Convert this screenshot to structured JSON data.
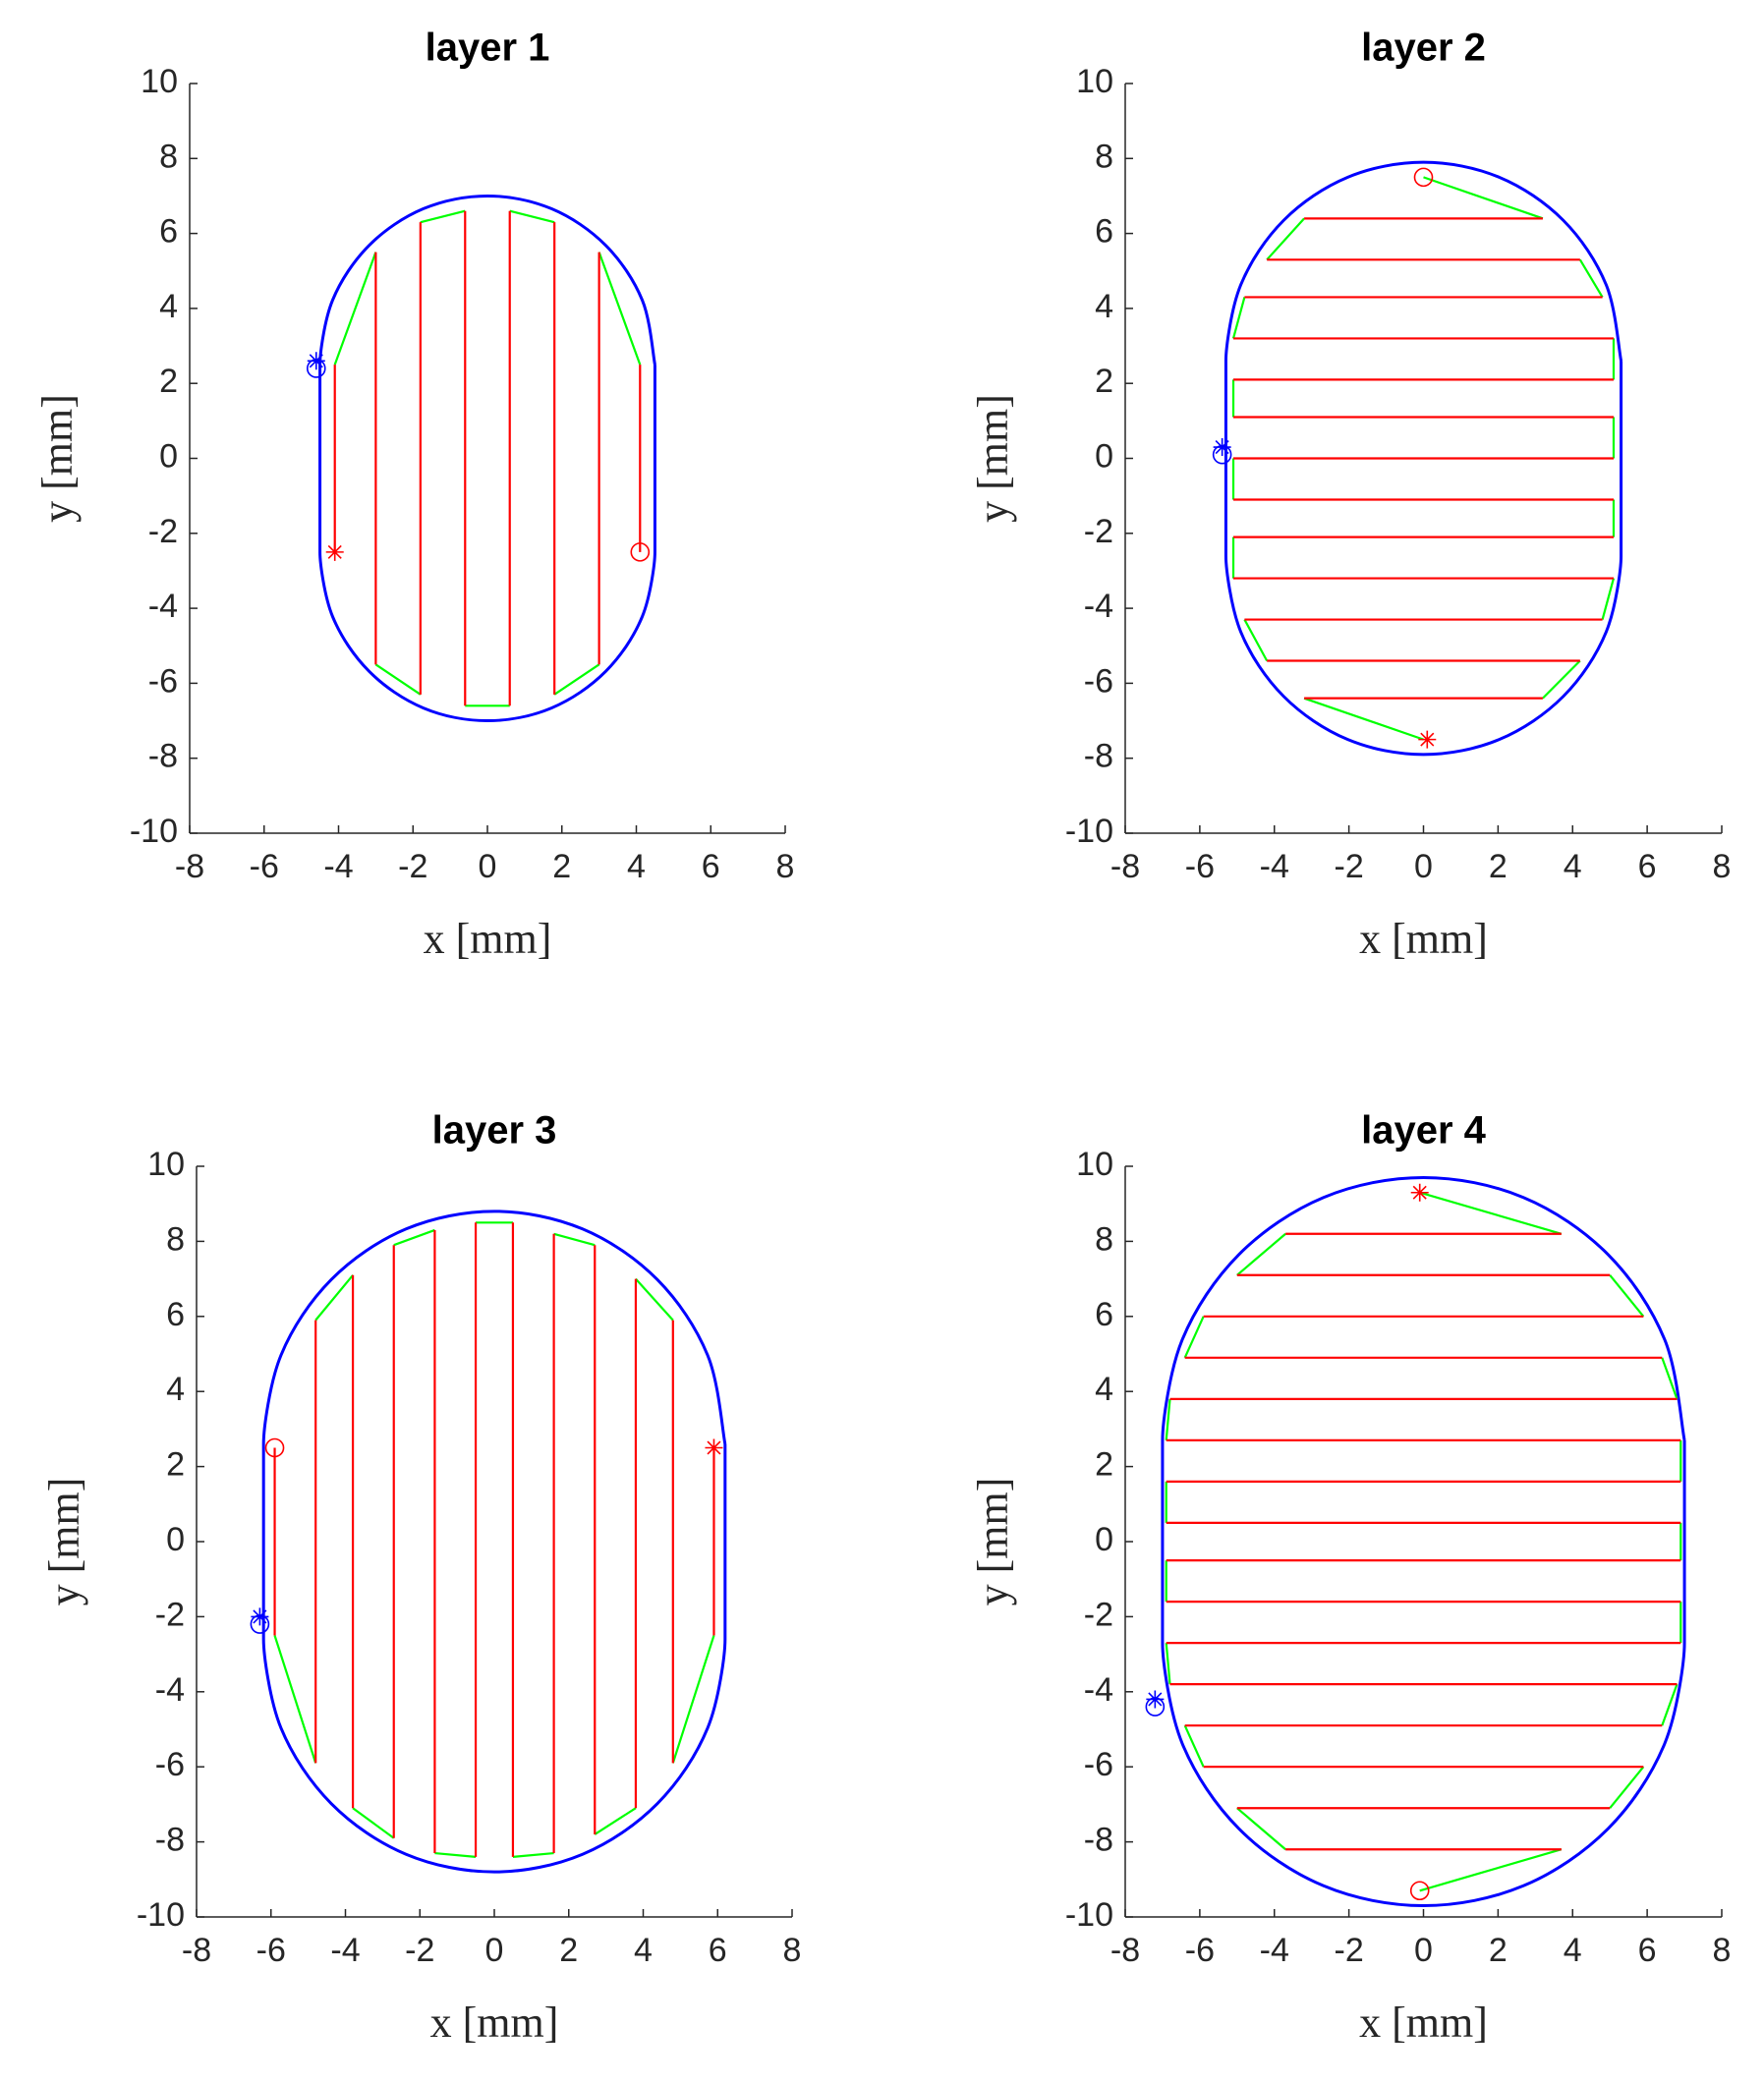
{
  "chart_data": [
    {
      "type": "line",
      "title": "layer 1",
      "xlabel": "x [mm]",
      "ylabel": "y [mm]",
      "xlim": [
        -8,
        8
      ],
      "ylim": [
        -10,
        10
      ],
      "xticks": [
        -8,
        -6,
        -4,
        -2,
        0,
        2,
        4,
        6,
        8
      ],
      "yticks": [
        -10,
        -8,
        -6,
        -4,
        -2,
        0,
        2,
        4,
        6,
        8,
        10
      ],
      "series": [
        {
          "color": "#0000ff",
          "smooth": true,
          "x": [
            4.5,
            4.16,
            3.18,
            1.72,
            0,
            -1.72,
            -3.18,
            -4.16,
            -4.5,
            -4.5,
            -4.16,
            -3.18,
            -1.72,
            0,
            1.72,
            3.18,
            4.16,
            4.5,
            4.5
          ],
          "y": [
            2.5,
            4.22,
            5.68,
            6.66,
            7.0,
            6.66,
            5.68,
            4.22,
            2.5,
            -2.5,
            -4.22,
            -5.68,
            -6.66,
            -7.0,
            -6.66,
            -5.68,
            -4.22,
            -2.5,
            2.5
          ]
        },
        {
          "color": "#00ff00",
          "x": [
            -4.1,
            -3.0,
            null,
            -3.0,
            -1.8,
            null,
            -1.8,
            -0.6,
            null,
            -0.6,
            0.6,
            null,
            0.6,
            1.8,
            null,
            1.8,
            3.0,
            null,
            3.0,
            4.1
          ],
          "y": [
            2.5,
            5.5,
            null,
            -5.5,
            -6.3,
            null,
            6.3,
            6.6,
            null,
            -6.6,
            -6.6,
            null,
            6.6,
            6.3,
            null,
            -6.3,
            -5.5,
            null,
            5.5,
            2.5
          ]
        },
        {
          "color": "#ff0000",
          "x": [
            -4.1,
            -4.1,
            null,
            -3.0,
            -3.0,
            null,
            -1.8,
            -1.8,
            null,
            -0.6,
            -0.6,
            null,
            0.6,
            0.6,
            null,
            1.8,
            1.8,
            null,
            3.0,
            3.0,
            null,
            4.1,
            4.1
          ],
          "y": [
            2.5,
            -2.5,
            null,
            5.5,
            -5.5,
            null,
            6.3,
            -6.3,
            null,
            6.6,
            -6.6,
            null,
            6.6,
            -6.6,
            null,
            6.3,
            -6.3,
            null,
            5.5,
            -5.5,
            null,
            2.5,
            -2.5
          ]
        },
        {
          "color": "#0000ff",
          "marker": "*",
          "x": [
            -4.6
          ],
          "y": [
            2.6
          ]
        },
        {
          "color": "#0000ff",
          "marker": "o",
          "x": [
            -4.6
          ],
          "y": [
            2.4
          ]
        },
        {
          "color": "#ff0000",
          "marker": "*",
          "x": [
            -4.1
          ],
          "y": [
            -2.5
          ]
        },
        {
          "color": "#ff0000",
          "marker": "o",
          "x": [
            4.1
          ],
          "y": [
            -2.5
          ]
        }
      ]
    },
    {
      "type": "line",
      "title": "layer 2",
      "xlabel": "x [mm]",
      "ylabel": "y [mm]",
      "xlim": [
        -8,
        8
      ],
      "ylim": [
        -10,
        10
      ],
      "xticks": [
        -8,
        -6,
        -4,
        -2,
        0,
        2,
        4,
        6,
        8
      ],
      "yticks": [
        -10,
        -8,
        -6,
        -4,
        -2,
        0,
        2,
        4,
        6,
        8,
        10
      ],
      "series": [
        {
          "color": "#0000ff",
          "smooth": true,
          "x": [
            5.3,
            4.9,
            3.75,
            2.03,
            0,
            -2.03,
            -3.75,
            -4.9,
            -5.3,
            -5.3,
            -4.9,
            -3.75,
            -2.03,
            0,
            2.03,
            3.75,
            4.9,
            5.3,
            5.3
          ],
          "y": [
            2.6,
            4.63,
            6.35,
            7.5,
            7.9,
            7.5,
            6.35,
            4.63,
            2.6,
            -2.6,
            -4.63,
            -6.35,
            -7.5,
            -7.9,
            -7.5,
            -6.35,
            -4.63,
            -2.6,
            2.6
          ]
        },
        {
          "color": "#00ff00",
          "x": [
            0,
            3.2,
            null,
            -3.2,
            -4.2,
            null,
            4.2,
            4.8,
            null,
            -4.8,
            -5.1,
            null,
            5.1,
            5.1,
            null,
            -5.1,
            -5.1,
            null,
            5.1,
            5.1,
            null,
            -5.1,
            -5.1,
            null,
            5.1,
            5.1,
            null,
            -5.1,
            -5.1,
            null,
            5.1,
            4.8,
            null,
            -4.8,
            -4.2,
            null,
            4.2,
            3.2,
            null,
            -3.2,
            0
          ],
          "y": [
            7.5,
            6.4,
            null,
            6.4,
            5.3,
            null,
            5.3,
            4.3,
            null,
            4.3,
            3.2,
            null,
            3.2,
            2.1,
            null,
            2.1,
            1.1,
            null,
            1.1,
            0,
            null,
            0,
            -1.1,
            null,
            -1.1,
            -2.1,
            null,
            -2.1,
            -3.2,
            null,
            -3.2,
            -4.3,
            null,
            -4.3,
            -5.4,
            null,
            -5.4,
            -6.4,
            null,
            -6.4,
            -7.5
          ]
        },
        {
          "color": "#ff0000",
          "x": [
            -3.2,
            3.2,
            null,
            -4.2,
            4.2,
            null,
            -4.8,
            4.8,
            null,
            -5.1,
            5.1,
            null,
            -5.1,
            5.1,
            null,
            -5.1,
            5.1,
            null,
            -5.1,
            5.1,
            null,
            -5.1,
            5.1,
            null,
            -5.1,
            5.1,
            null,
            -5.1,
            5.1,
            null,
            -4.8,
            4.8,
            null,
            -4.2,
            4.2,
            null,
            -3.2,
            3.2
          ],
          "y": [
            6.4,
            6.4,
            null,
            5.3,
            5.3,
            null,
            4.3,
            4.3,
            null,
            3.2,
            3.2,
            null,
            2.1,
            2.1,
            null,
            1.1,
            1.1,
            null,
            0,
            0,
            null,
            -1.1,
            -1.1,
            null,
            -2.1,
            -2.1,
            null,
            -3.2,
            -3.2,
            null,
            -4.3,
            -4.3,
            null,
            -5.4,
            -5.4,
            null,
            -6.4,
            -6.4
          ]
        },
        {
          "color": "#0000ff",
          "marker": "*",
          "x": [
            -5.4
          ],
          "y": [
            0.3
          ]
        },
        {
          "color": "#0000ff",
          "marker": "o",
          "x": [
            -5.4
          ],
          "y": [
            0.1
          ]
        },
        {
          "color": "#ff0000",
          "marker": "o",
          "x": [
            0
          ],
          "y": [
            7.5
          ]
        },
        {
          "color": "#ff0000",
          "marker": "*",
          "x": [
            0.1
          ],
          "y": [
            -7.5
          ]
        }
      ]
    },
    {
      "type": "line",
      "title": "layer 3",
      "xlabel": "x [mm]",
      "ylabel": "y [mm]",
      "xlim": [
        -8,
        8
      ],
      "ylim": [
        -10,
        10
      ],
      "xticks": [
        -8,
        -6,
        -4,
        -2,
        0,
        2,
        4,
        6,
        8
      ],
      "yticks": [
        -10,
        -8,
        -6,
        -4,
        -2,
        0,
        2,
        4,
        6,
        8,
        10
      ],
      "series": [
        {
          "color": "#0000ff",
          "smooth": true,
          "x": [
            6.2,
            5.73,
            4.38,
            2.37,
            0,
            -2.37,
            -4.38,
            -5.73,
            -6.2,
            -6.2,
            -5.73,
            -4.38,
            -2.37,
            0,
            2.37,
            4.38,
            5.73,
            6.2,
            6.2
          ],
          "y": [
            2.6,
            4.97,
            6.98,
            8.33,
            8.8,
            8.33,
            6.98,
            4.97,
            2.6,
            -2.6,
            -4.97,
            -6.98,
            -8.33,
            -8.8,
            -8.33,
            -6.98,
            -4.97,
            -2.6,
            2.6
          ]
        },
        {
          "color": "#00ff00",
          "x": [
            -5.9,
            -4.8,
            null,
            -4.8,
            -3.8,
            null,
            -3.8,
            -2.7,
            null,
            -2.7,
            -1.6,
            null,
            -1.6,
            -0.5,
            null,
            -0.5,
            0.5,
            null,
            0.5,
            1.6,
            null,
            1.6,
            2.7,
            null,
            2.7,
            3.8,
            null,
            3.8,
            4.8,
            null,
            4.8,
            5.9
          ],
          "y": [
            -2.5,
            -5.9,
            null,
            5.9,
            7.1,
            null,
            -7.1,
            -7.9,
            null,
            7.9,
            8.3,
            null,
            -8.3,
            -8.4,
            null,
            8.5,
            8.5,
            null,
            -8.4,
            -8.3,
            null,
            8.2,
            7.9,
            null,
            -7.8,
            -7.1,
            null,
            7.0,
            5.9,
            null,
            -5.9,
            -2.5
          ]
        },
        {
          "color": "#ff0000",
          "x": [
            -5.9,
            -5.9,
            null,
            -4.8,
            -4.8,
            null,
            -3.8,
            -3.8,
            null,
            -2.7,
            -2.7,
            null,
            -1.6,
            -1.6,
            null,
            -0.5,
            -0.5,
            null,
            0.5,
            0.5,
            null,
            1.6,
            1.6,
            null,
            2.7,
            2.7,
            null,
            3.8,
            3.8,
            null,
            4.8,
            4.8,
            null,
            5.9,
            5.9
          ],
          "y": [
            2.5,
            -2.5,
            null,
            5.9,
            -5.9,
            null,
            7.1,
            -7.1,
            null,
            7.9,
            -7.9,
            null,
            8.3,
            -8.3,
            null,
            8.5,
            -8.4,
            null,
            8.5,
            -8.4,
            null,
            8.2,
            -8.3,
            null,
            7.9,
            -7.8,
            null,
            7.0,
            -7.1,
            null,
            5.9,
            -5.9,
            null,
            2.5,
            -2.5
          ]
        },
        {
          "color": "#0000ff",
          "marker": "*",
          "x": [
            -6.3
          ],
          "y": [
            -2.0
          ]
        },
        {
          "color": "#0000ff",
          "marker": "o",
          "x": [
            -6.3
          ],
          "y": [
            -2.2
          ]
        },
        {
          "color": "#ff0000",
          "marker": "o",
          "x": [
            -5.9
          ],
          "y": [
            2.5
          ]
        },
        {
          "color": "#ff0000",
          "marker": "*",
          "x": [
            5.9
          ],
          "y": [
            2.5
          ]
        }
      ]
    },
    {
      "type": "line",
      "title": "layer 4",
      "xlabel": "x [mm]",
      "ylabel": "y [mm]",
      "xlim": [
        -8,
        8
      ],
      "ylim": [
        -10,
        10
      ],
      "xticks": [
        -8,
        -6,
        -4,
        -2,
        0,
        2,
        4,
        6,
        8
      ],
      "yticks": [
        -10,
        -8,
        -6,
        -4,
        -2,
        0,
        2,
        4,
        6,
        8,
        10
      ],
      "series": [
        {
          "color": "#0000ff",
          "smooth": true,
          "x": [
            7.0,
            6.47,
            4.95,
            2.68,
            0,
            -2.68,
            -4.95,
            -6.47,
            -7.0,
            -7.0,
            -6.47,
            -4.95,
            -2.68,
            0,
            2.68,
            4.95,
            6.47,
            7.0,
            7.0
          ],
          "y": [
            2.7,
            5.38,
            7.65,
            9.17,
            9.7,
            9.17,
            7.65,
            5.38,
            2.7,
            -2.7,
            -5.38,
            -7.65,
            -9.17,
            -9.7,
            -9.17,
            -7.65,
            -5.38,
            -2.7,
            2.7
          ]
        },
        {
          "color": "#00ff00",
          "x": [
            -0.1,
            3.7,
            null,
            -3.7,
            -5.0,
            null,
            5.0,
            5.9,
            null,
            -5.9,
            -6.4,
            null,
            6.4,
            6.8,
            null,
            -6.8,
            -6.9,
            null,
            6.9,
            6.9,
            null,
            -6.9,
            -6.9,
            null,
            6.9,
            6.9,
            null,
            -6.9,
            -6.9,
            null,
            6.9,
            6.9,
            null,
            -6.9,
            -6.8,
            null,
            6.8,
            6.4,
            null,
            -6.4,
            -5.9,
            null,
            5.9,
            5.0,
            null,
            -5.0,
            -3.7,
            null,
            3.7,
            -0.1
          ],
          "y": [
            9.3,
            8.2,
            null,
            8.2,
            7.1,
            null,
            7.1,
            6.0,
            null,
            6.0,
            4.9,
            null,
            4.9,
            3.8,
            null,
            3.8,
            2.7,
            null,
            2.7,
            1.6,
            null,
            1.6,
            0.5,
            null,
            0.5,
            -0.5,
            null,
            -0.5,
            -1.6,
            null,
            -1.6,
            -2.7,
            null,
            -2.7,
            -3.8,
            null,
            -3.8,
            -4.9,
            null,
            -4.9,
            -6.0,
            null,
            -6.0,
            -7.1,
            null,
            -7.1,
            -8.2,
            null,
            -8.2,
            -9.3
          ]
        },
        {
          "color": "#ff0000",
          "x": [
            -3.7,
            3.7,
            null,
            -5.0,
            5.0,
            null,
            -5.9,
            5.9,
            null,
            -6.4,
            6.4,
            null,
            -6.8,
            6.8,
            null,
            -6.9,
            6.9,
            null,
            -6.9,
            6.9,
            null,
            -6.9,
            6.9,
            null,
            -6.9,
            6.9,
            null,
            -6.9,
            6.9,
            null,
            -6.9,
            6.9,
            null,
            -6.8,
            6.8,
            null,
            -6.4,
            6.4,
            null,
            -5.9,
            5.9,
            null,
            -5.0,
            5.0,
            null,
            -3.7,
            3.7
          ],
          "y": [
            8.2,
            8.2,
            null,
            7.1,
            7.1,
            null,
            6.0,
            6.0,
            null,
            4.9,
            4.9,
            null,
            3.8,
            3.8,
            null,
            2.7,
            2.7,
            null,
            1.6,
            1.6,
            null,
            0.5,
            0.5,
            null,
            -0.5,
            -0.5,
            null,
            -1.6,
            -1.6,
            null,
            -2.7,
            -2.7,
            null,
            -3.8,
            -3.8,
            null,
            -4.9,
            -4.9,
            null,
            -6.0,
            -6.0,
            null,
            -7.1,
            -7.1,
            null,
            -8.2,
            -8.2
          ]
        },
        {
          "color": "#0000ff",
          "marker": "*",
          "x": [
            -7.2
          ],
          "y": [
            -4.2
          ]
        },
        {
          "color": "#0000ff",
          "marker": "o",
          "x": [
            -7.2
          ],
          "y": [
            -4.4
          ]
        },
        {
          "color": "#ff0000",
          "marker": "*",
          "x": [
            -0.1
          ],
          "y": [
            9.3
          ]
        },
        {
          "color": "#ff0000",
          "marker": "o",
          "x": [
            -0.1
          ],
          "y": [
            -9.3
          ]
        }
      ]
    }
  ]
}
